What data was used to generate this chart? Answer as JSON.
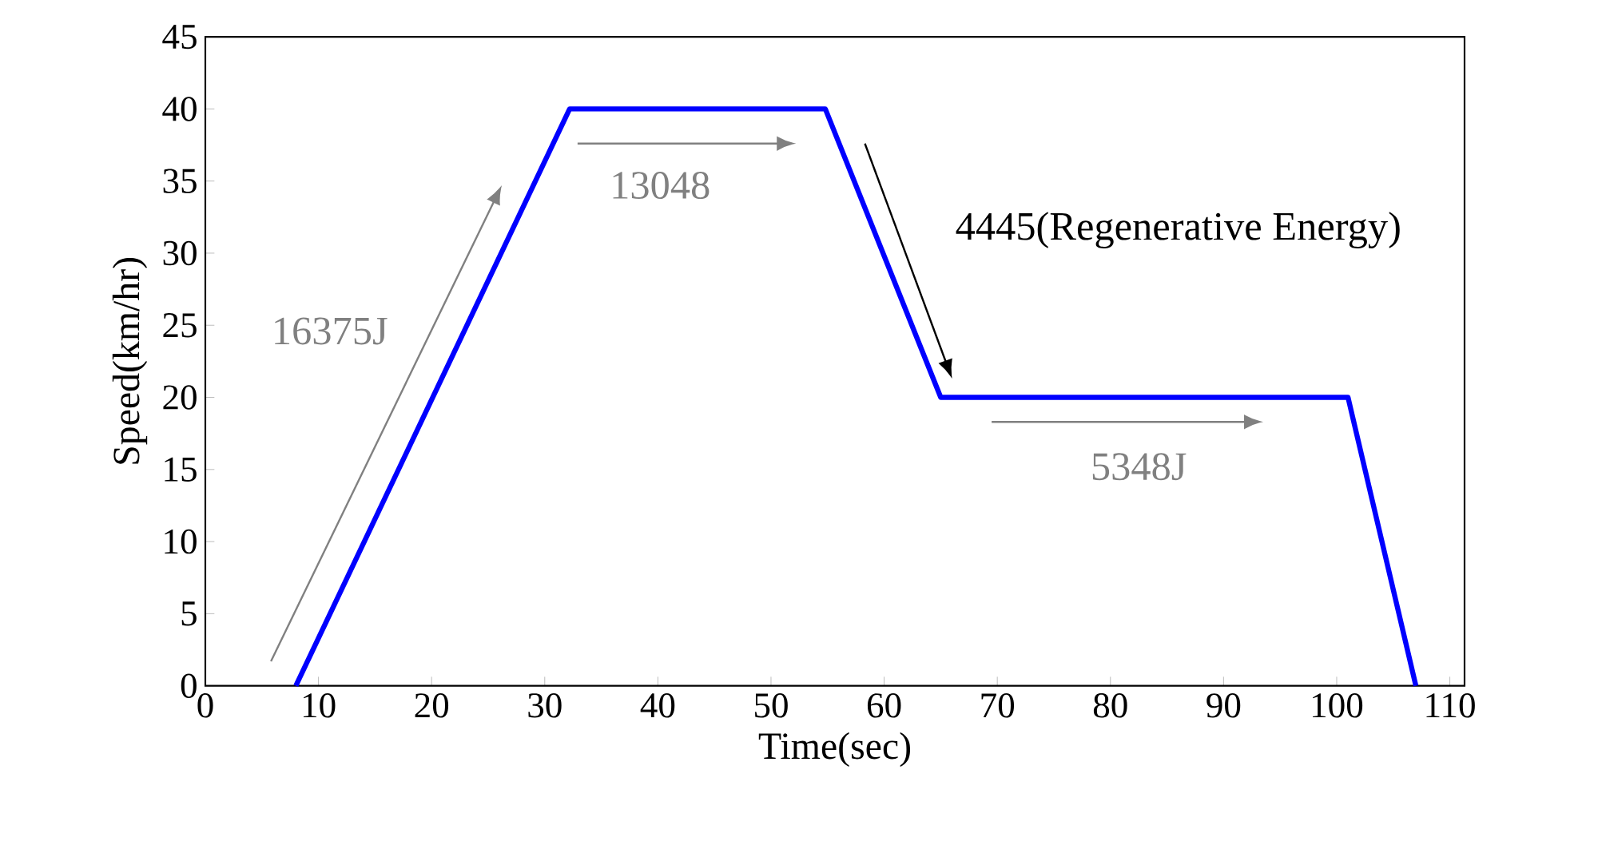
{
  "chart_data": {
    "type": "line",
    "xlabel": "Time(sec)",
    "ylabel": "Speed(km/hr)",
    "x": [
      8,
      32.2,
      54.8,
      65,
      101,
      107
    ],
    "series": [
      {
        "color": "#0000ff",
        "values": [
          0,
          40,
          40,
          20,
          20,
          0
        ]
      }
    ],
    "xlim": [
      0,
      111.3
    ],
    "ylim": [
      0,
      45
    ],
    "xticks": [
      0,
      10,
      20,
      30,
      40,
      50,
      60,
      70,
      80,
      90,
      100,
      110
    ],
    "yticks": [
      0,
      5,
      10,
      15,
      20,
      25,
      30,
      35,
      40,
      45
    ],
    "marker": "none",
    "line_style": "solid",
    "annotations": [
      "16375J",
      "13048",
      "4445(Regenerative Energy)",
      "5348J"
    ]
  }
}
